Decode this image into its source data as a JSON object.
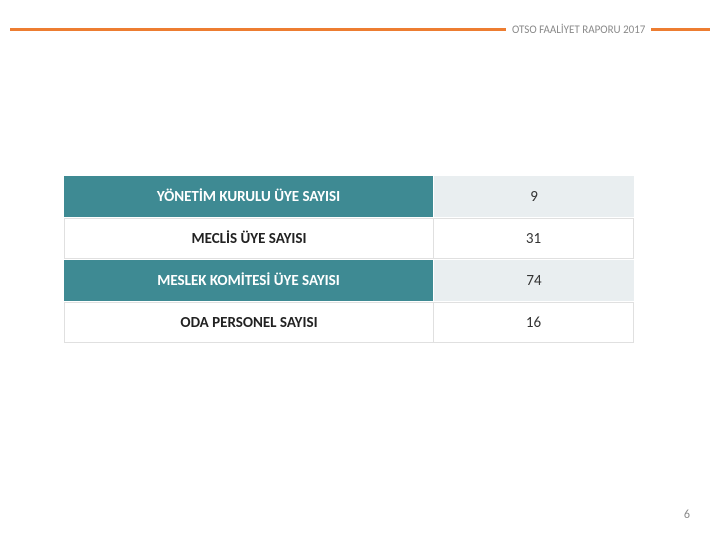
{
  "header": {
    "title": "OTSO FAALİYET RAPORU 2017",
    "line_color": "#ed7d31",
    "title_color": "#8a8a8a",
    "title_fontsize": 11
  },
  "table": {
    "rows": [
      {
        "label": "YÖNETİM KURULU ÜYE SAYISI",
        "value": "9",
        "style": "teal"
      },
      {
        "label": "MECLİS ÜYE SAYISI",
        "value": "31",
        "style": "white"
      },
      {
        "label": "MESLEK KOMİTESİ ÜYE SAYISI",
        "value": "74",
        "style": "teal"
      },
      {
        "label": "ODA PERSONEL SAYISI",
        "value": "16",
        "style": "white"
      }
    ],
    "colors": {
      "teal_bg": "#3e8a93",
      "teal_text": "#ffffff",
      "teal_value_bg": "#e9eef0",
      "white_bg": "#ffffff",
      "white_text": "#222222",
      "value_text": "#333333",
      "border": "#e0e0e0"
    },
    "label_fontsize": 15,
    "value_fontsize": 15
  },
  "footer": {
    "page_number": "6",
    "color": "#888888",
    "fontsize": 12
  }
}
